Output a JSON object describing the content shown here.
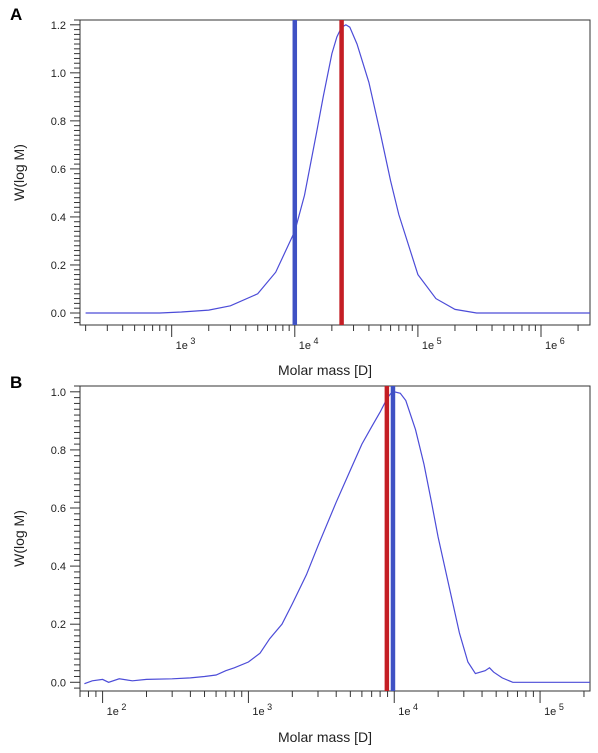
{
  "chart_data": [
    {
      "panel": "A",
      "type": "line",
      "xlabel": "Molar mass [D]",
      "ylabel": "W(log M)",
      "xscale": "log",
      "xlim": [
        180,
        2500000
      ],
      "ylim": [
        -0.05,
        1.22
      ],
      "grid": false,
      "yticks": [
        {
          "v": 0.0,
          "label": "0.0"
        },
        {
          "v": 0.2,
          "label": "0.2"
        },
        {
          "v": 0.4,
          "label": "0.4"
        },
        {
          "v": 0.6,
          "label": "0.6"
        },
        {
          "v": 0.8,
          "label": "0.8"
        },
        {
          "v": 1.0,
          "label": "1.0"
        },
        {
          "v": 1.2,
          "label": "1.2"
        }
      ],
      "xticks": [
        {
          "v": 1000,
          "base": "1e",
          "exp": "3"
        },
        {
          "v": 10000,
          "base": "1e",
          "exp": "4"
        },
        {
          "v": 100000,
          "base": "1e",
          "exp": "5"
        },
        {
          "v": 1000000,
          "base": "1e",
          "exp": "6"
        }
      ],
      "series": [
        {
          "color": "#4c4cd8",
          "points": [
            [
              200,
              0.0
            ],
            [
              500,
              0.0
            ],
            [
              800,
              0.0
            ],
            [
              1200,
              0.004
            ],
            [
              2000,
              0.012
            ],
            [
              3000,
              0.03
            ],
            [
              5000,
              0.08
            ],
            [
              7000,
              0.17
            ],
            [
              9000,
              0.29
            ],
            [
              10000,
              0.34
            ],
            [
              12000,
              0.49
            ],
            [
              15000,
              0.75
            ],
            [
              17000,
              0.9
            ],
            [
              20000,
              1.08
            ],
            [
              22000,
              1.15
            ],
            [
              24000,
              1.19
            ],
            [
              26000,
              1.2
            ],
            [
              28000,
              1.19
            ],
            [
              32000,
              1.12
            ],
            [
              40000,
              0.96
            ],
            [
              50000,
              0.74
            ],
            [
              60000,
              0.55
            ],
            [
              70000,
              0.41
            ],
            [
              100000,
              0.16
            ],
            [
              140000,
              0.06
            ],
            [
              200000,
              0.015
            ],
            [
              300000,
              0.0
            ],
            [
              1000000,
              0.0
            ],
            [
              2500000,
              0.0
            ]
          ]
        }
      ],
      "markers": [
        {
          "x": 10000,
          "color": "#3f51c4"
        },
        {
          "x": 24000,
          "color": "#c41e24"
        }
      ]
    },
    {
      "panel": "B",
      "type": "line",
      "xlabel": "Molar mass [D]",
      "ylabel": "W(log M)",
      "xscale": "log",
      "xlim": [
        70,
        220000
      ],
      "ylim": [
        -0.03,
        1.02
      ],
      "grid": false,
      "yticks": [
        {
          "v": 0.0,
          "label": "0.0"
        },
        {
          "v": 0.2,
          "label": "0.2"
        },
        {
          "v": 0.4,
          "label": "0.4"
        },
        {
          "v": 0.6,
          "label": "0.6"
        },
        {
          "v": 0.8,
          "label": "0.8"
        },
        {
          "v": 1.0,
          "label": "1.0"
        }
      ],
      "xticks": [
        {
          "v": 100,
          "base": "1e",
          "exp": "2"
        },
        {
          "v": 1000,
          "base": "1e",
          "exp": "3"
        },
        {
          "v": 10000,
          "base": "1e",
          "exp": "4"
        },
        {
          "v": 100000,
          "base": "1e",
          "exp": "5"
        }
      ],
      "series": [
        {
          "color": "#4c4cd8",
          "points": [
            [
              75,
              -0.005
            ],
            [
              85,
              0.005
            ],
            [
              100,
              0.01
            ],
            [
              110,
              0.0
            ],
            [
              130,
              0.012
            ],
            [
              160,
              0.005
            ],
            [
              200,
              0.01
            ],
            [
              300,
              0.012
            ],
            [
              400,
              0.015
            ],
            [
              500,
              0.02
            ],
            [
              600,
              0.025
            ],
            [
              700,
              0.04
            ],
            [
              800,
              0.05
            ],
            [
              1000,
              0.07
            ],
            [
              1200,
              0.1
            ],
            [
              1400,
              0.15
            ],
            [
              1700,
              0.2
            ],
            [
              2000,
              0.27
            ],
            [
              2500,
              0.37
            ],
            [
              3000,
              0.47
            ],
            [
              4000,
              0.62
            ],
            [
              5000,
              0.73
            ],
            [
              6000,
              0.82
            ],
            [
              7000,
              0.88
            ],
            [
              8000,
              0.93
            ],
            [
              9000,
              0.98
            ],
            [
              9500,
              0.995
            ],
            [
              10000,
              1.0
            ],
            [
              11000,
              0.995
            ],
            [
              12000,
              0.97
            ],
            [
              14000,
              0.87
            ],
            [
              16000,
              0.75
            ],
            [
              18000,
              0.62
            ],
            [
              20000,
              0.5
            ],
            [
              24000,
              0.32
            ],
            [
              28000,
              0.17
            ],
            [
              32000,
              0.07
            ],
            [
              36000,
              0.03
            ],
            [
              42000,
              0.04
            ],
            [
              45000,
              0.05
            ],
            [
              48000,
              0.035
            ],
            [
              55000,
              0.015
            ],
            [
              65000,
              0.0
            ],
            [
              80000,
              0.0
            ],
            [
              100000,
              0.0
            ],
            [
              220000,
              0.0
            ]
          ]
        }
      ],
      "markers": [
        {
          "x": 8900,
          "color": "#c41e24"
        },
        {
          "x": 9800,
          "color": "#3f51c4"
        }
      ]
    }
  ]
}
